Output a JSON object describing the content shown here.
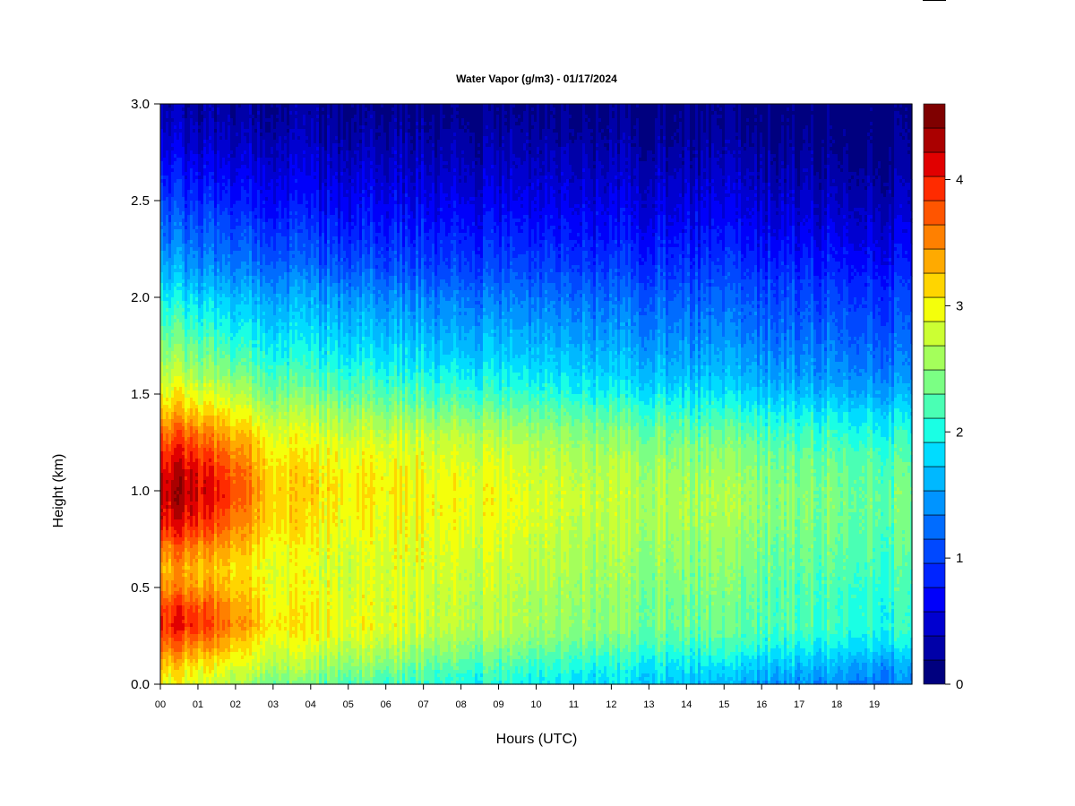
{
  "chart_data": {
    "type": "heatmap",
    "title": "Water Vapor (g/m3) - 01/17/2024",
    "xlabel": "Hours (UTC)",
    "ylabel": "Height (km)",
    "x_ticks": [
      "00",
      "01",
      "02",
      "03",
      "04",
      "05",
      "06",
      "07",
      "08",
      "09",
      "10",
      "11",
      "12",
      "13",
      "14",
      "15",
      "16",
      "17",
      "18",
      "19"
    ],
    "y_ticks": [
      "0.0",
      "0.5",
      "1.0",
      "1.5",
      "2.0",
      "2.5",
      "3.0"
    ],
    "xlim": [
      0,
      20
    ],
    "ylim": [
      0,
      3.0
    ],
    "colorbar": {
      "ticks": [
        "0",
        "1",
        "2",
        "3",
        "4"
      ],
      "range": [
        0,
        4.6
      ],
      "levels": 23,
      "colors": [
        "#00007f",
        "#0000a8",
        "#0000d0",
        "#0000fa",
        "#0024ff",
        "#0048ff",
        "#006cff",
        "#0094ff",
        "#00b8ff",
        "#00dcff",
        "#1affe4",
        "#4affb4",
        "#7bff84",
        "#a4ff5b",
        "#ccff33",
        "#f4ff0b",
        "#ffd500",
        "#ffaa00",
        "#ff8000",
        "#ff5500",
        "#ff2b00",
        "#e10000",
        "#aa0000",
        "#7f0000"
      ]
    },
    "hours": [
      0.0,
      0.5,
      1.0,
      1.5,
      2.0,
      2.5,
      3.0,
      4.0,
      5.0,
      6.0,
      7.0,
      8.0,
      9.0,
      10.0,
      11.0,
      12.0,
      13.0,
      14.0,
      15.0,
      16.0,
      17.0,
      18.0,
      19.0,
      20.0
    ],
    "heights_km": [
      0.0,
      0.1,
      0.2,
      0.3,
      0.4,
      0.5,
      0.6,
      0.7,
      0.8,
      0.9,
      1.0,
      1.1,
      1.2,
      1.3,
      1.4,
      1.5,
      1.6,
      1.7,
      1.8,
      1.9,
      2.0,
      2.1,
      2.2,
      2.3,
      2.4,
      2.5,
      2.6,
      2.7,
      2.8,
      2.9,
      3.0
    ],
    "profiles_g_m3": [
      [
        2.9,
        3.2,
        3.6,
        3.9,
        3.8,
        3.4,
        3.3,
        3.5,
        3.9,
        4.1,
        4.2,
        4.1,
        3.9,
        3.6,
        3.2,
        2.9,
        2.7,
        2.5,
        2.3,
        2.1,
        1.9,
        1.7,
        1.5,
        1.3,
        1.15,
        1.0,
        0.85,
        0.7,
        0.55,
        0.4,
        0.3
      ],
      [
        2.9,
        3.2,
        3.6,
        4.0,
        3.9,
        3.5,
        3.4,
        3.6,
        4.0,
        4.2,
        4.3,
        4.2,
        4.0,
        3.7,
        3.3,
        3.0,
        2.7,
        2.5,
        2.3,
        2.1,
        1.9,
        1.65,
        1.45,
        1.25,
        1.1,
        0.95,
        0.8,
        0.65,
        0.5,
        0.38,
        0.28
      ],
      [
        2.8,
        3.1,
        3.5,
        3.9,
        3.8,
        3.4,
        3.3,
        3.5,
        3.9,
        4.1,
        4.2,
        4.1,
        3.9,
        3.6,
        3.2,
        2.9,
        2.6,
        2.4,
        2.2,
        2.0,
        1.8,
        1.55,
        1.35,
        1.2,
        1.05,
        0.9,
        0.75,
        0.6,
        0.45,
        0.35,
        0.25
      ],
      [
        2.7,
        3.0,
        3.4,
        3.7,
        3.6,
        3.3,
        3.2,
        3.4,
        3.7,
        3.9,
        4.0,
        3.9,
        3.7,
        3.4,
        3.1,
        2.8,
        2.5,
        2.3,
        2.1,
        1.9,
        1.7,
        1.5,
        1.3,
        1.15,
        1.0,
        0.85,
        0.7,
        0.55,
        0.42,
        0.32,
        0.24
      ],
      [
        2.6,
        2.9,
        3.2,
        3.5,
        3.4,
        3.2,
        3.1,
        3.3,
        3.5,
        3.7,
        3.8,
        3.7,
        3.5,
        3.3,
        3.0,
        2.7,
        2.4,
        2.2,
        2.0,
        1.8,
        1.65,
        1.45,
        1.25,
        1.1,
        0.95,
        0.8,
        0.65,
        0.52,
        0.4,
        0.3,
        0.22
      ],
      [
        2.5,
        2.8,
        3.0,
        3.3,
        3.2,
        3.1,
        3.0,
        3.1,
        3.3,
        3.4,
        3.5,
        3.4,
        3.3,
        3.1,
        2.8,
        2.5,
        2.3,
        2.1,
        1.95,
        1.75,
        1.6,
        1.4,
        1.2,
        1.05,
        0.9,
        0.75,
        0.62,
        0.5,
        0.38,
        0.28,
        0.2
      ],
      [
        2.4,
        2.7,
        2.9,
        3.1,
        3.0,
        2.95,
        2.9,
        3.0,
        3.1,
        3.2,
        3.2,
        3.15,
        3.05,
        2.9,
        2.65,
        2.4,
        2.2,
        2.0,
        1.85,
        1.7,
        1.55,
        1.35,
        1.15,
        1.0,
        0.85,
        0.72,
        0.6,
        0.48,
        0.36,
        0.26,
        0.18
      ],
      [
        2.3,
        2.6,
        2.8,
        3.0,
        2.95,
        2.9,
        2.85,
        2.9,
        3.0,
        3.05,
        3.1,
        3.05,
        2.95,
        2.8,
        2.6,
        2.35,
        2.15,
        1.95,
        1.8,
        1.65,
        1.5,
        1.3,
        1.1,
        0.95,
        0.8,
        0.68,
        0.56,
        0.45,
        0.34,
        0.24,
        0.17
      ],
      [
        2.25,
        2.5,
        2.75,
        2.95,
        2.9,
        2.85,
        2.8,
        2.85,
        2.95,
        3.0,
        3.05,
        3.0,
        2.9,
        2.75,
        2.55,
        2.3,
        2.1,
        1.9,
        1.75,
        1.6,
        1.45,
        1.25,
        1.05,
        0.9,
        0.78,
        0.66,
        0.54,
        0.43,
        0.32,
        0.22,
        0.16
      ],
      [
        2.2,
        2.45,
        2.7,
        2.9,
        2.85,
        2.85,
        2.85,
        2.9,
        2.95,
        3.0,
        3.05,
        3.0,
        2.9,
        2.75,
        2.5,
        2.25,
        2.05,
        1.85,
        1.7,
        1.55,
        1.4,
        1.2,
        1.0,
        0.88,
        0.76,
        0.64,
        0.52,
        0.42,
        0.31,
        0.21,
        0.15
      ],
      [
        2.1,
        2.35,
        2.6,
        2.8,
        2.8,
        2.8,
        2.85,
        2.9,
        2.95,
        3.0,
        3.0,
        2.95,
        2.85,
        2.7,
        2.45,
        2.2,
        2.0,
        1.8,
        1.65,
        1.5,
        1.35,
        1.15,
        0.98,
        0.86,
        0.74,
        0.62,
        0.5,
        0.4,
        0.3,
        0.2,
        0.14
      ],
      [
        2.0,
        2.25,
        2.5,
        2.7,
        2.7,
        2.75,
        2.8,
        2.85,
        2.9,
        2.95,
        2.95,
        2.9,
        2.8,
        2.65,
        2.4,
        2.15,
        1.95,
        1.75,
        1.6,
        1.45,
        1.3,
        1.12,
        0.96,
        0.84,
        0.72,
        0.6,
        0.48,
        0.38,
        0.28,
        0.18,
        0.13
      ],
      [
        1.95,
        2.2,
        2.45,
        2.65,
        2.65,
        2.7,
        2.75,
        2.8,
        2.85,
        2.9,
        2.9,
        2.85,
        2.75,
        2.6,
        2.35,
        2.1,
        1.9,
        1.72,
        1.58,
        1.42,
        1.28,
        1.1,
        0.95,
        0.82,
        0.7,
        0.58,
        0.47,
        0.37,
        0.27,
        0.18,
        0.12
      ],
      [
        1.9,
        2.1,
        2.35,
        2.55,
        2.55,
        2.6,
        2.65,
        2.7,
        2.75,
        2.8,
        2.8,
        2.75,
        2.65,
        2.5,
        2.3,
        2.05,
        1.85,
        1.68,
        1.54,
        1.4,
        1.25,
        1.08,
        0.94,
        0.8,
        0.68,
        0.56,
        0.46,
        0.36,
        0.26,
        0.17,
        0.12
      ],
      [
        1.85,
        2.05,
        2.3,
        2.5,
        2.5,
        2.55,
        2.6,
        2.65,
        2.7,
        2.75,
        2.75,
        2.7,
        2.6,
        2.45,
        2.25,
        2.0,
        1.8,
        1.65,
        1.5,
        1.38,
        1.22,
        1.06,
        0.92,
        0.78,
        0.66,
        0.55,
        0.45,
        0.35,
        0.25,
        0.16,
        0.11
      ],
      [
        1.8,
        2.0,
        2.25,
        2.45,
        2.45,
        2.5,
        2.55,
        2.6,
        2.65,
        2.7,
        2.7,
        2.65,
        2.55,
        2.4,
        2.2,
        1.95,
        1.75,
        1.6,
        1.46,
        1.34,
        1.2,
        1.04,
        0.9,
        0.76,
        0.64,
        0.54,
        0.44,
        0.34,
        0.24,
        0.15,
        0.1
      ],
      [
        1.75,
        1.95,
        2.2,
        2.4,
        2.4,
        2.45,
        2.5,
        2.55,
        2.6,
        2.65,
        2.65,
        2.6,
        2.5,
        2.35,
        2.15,
        1.9,
        1.7,
        1.55,
        1.42,
        1.3,
        1.18,
        1.02,
        0.88,
        0.75,
        0.63,
        0.53,
        0.43,
        0.33,
        0.23,
        0.14,
        0.1
      ],
      [
        1.7,
        1.9,
        2.15,
        2.35,
        2.35,
        2.4,
        2.45,
        2.5,
        2.55,
        2.6,
        2.6,
        2.55,
        2.45,
        2.3,
        2.1,
        1.85,
        1.65,
        1.5,
        1.38,
        1.26,
        1.15,
        1.0,
        0.86,
        0.74,
        0.62,
        0.52,
        0.42,
        0.32,
        0.22,
        0.14,
        0.09
      ],
      [
        1.55,
        1.8,
        2.1,
        2.3,
        2.3,
        2.35,
        2.4,
        2.45,
        2.5,
        2.55,
        2.55,
        2.5,
        2.4,
        2.25,
        2.05,
        1.8,
        1.6,
        1.45,
        1.34,
        1.22,
        1.12,
        0.98,
        0.84,
        0.72,
        0.6,
        0.5,
        0.4,
        0.3,
        0.21,
        0.13,
        0.09
      ],
      [
        1.5,
        1.75,
        2.05,
        2.25,
        2.25,
        2.3,
        2.35,
        2.4,
        2.45,
        2.5,
        2.5,
        2.45,
        2.35,
        2.2,
        2.0,
        1.75,
        1.55,
        1.42,
        1.3,
        1.2,
        1.1,
        0.96,
        0.82,
        0.7,
        0.58,
        0.48,
        0.38,
        0.28,
        0.2,
        0.12,
        0.08
      ],
      [
        1.45,
        1.7,
        2.0,
        2.2,
        2.2,
        2.25,
        2.3,
        2.35,
        2.4,
        2.45,
        2.45,
        2.4,
        2.3,
        2.15,
        1.95,
        1.7,
        1.5,
        1.38,
        1.26,
        1.16,
        1.06,
        0.94,
        0.8,
        0.68,
        0.56,
        0.46,
        0.36,
        0.26,
        0.18,
        0.11,
        0.08
      ],
      [
        1.4,
        1.65,
        1.95,
        2.15,
        2.15,
        2.2,
        2.25,
        2.3,
        2.35,
        2.4,
        2.4,
        2.35,
        2.25,
        2.1,
        1.9,
        1.65,
        1.45,
        1.34,
        1.22,
        1.12,
        1.02,
        0.9,
        0.76,
        0.64,
        0.52,
        0.42,
        0.32,
        0.23,
        0.16,
        0.1,
        0.07
      ],
      [
        1.35,
        1.55,
        1.9,
        2.1,
        2.1,
        2.15,
        2.2,
        2.25,
        2.3,
        2.35,
        2.35,
        2.3,
        2.2,
        2.05,
        1.85,
        1.6,
        1.4,
        1.28,
        1.18,
        1.08,
        0.98,
        0.86,
        0.72,
        0.6,
        0.48,
        0.38,
        0.28,
        0.2,
        0.14,
        0.09,
        0.06
      ],
      [
        1.3,
        1.5,
        1.85,
        2.05,
        2.05,
        2.1,
        2.15,
        2.2,
        2.25,
        2.3,
        2.3,
        2.25,
        2.15,
        2.0,
        1.8,
        1.55,
        1.35,
        1.24,
        1.14,
        1.04,
        0.94,
        0.82,
        0.68,
        0.56,
        0.45,
        0.35,
        0.26,
        0.18,
        0.12,
        0.08,
        0.05
      ]
    ]
  }
}
